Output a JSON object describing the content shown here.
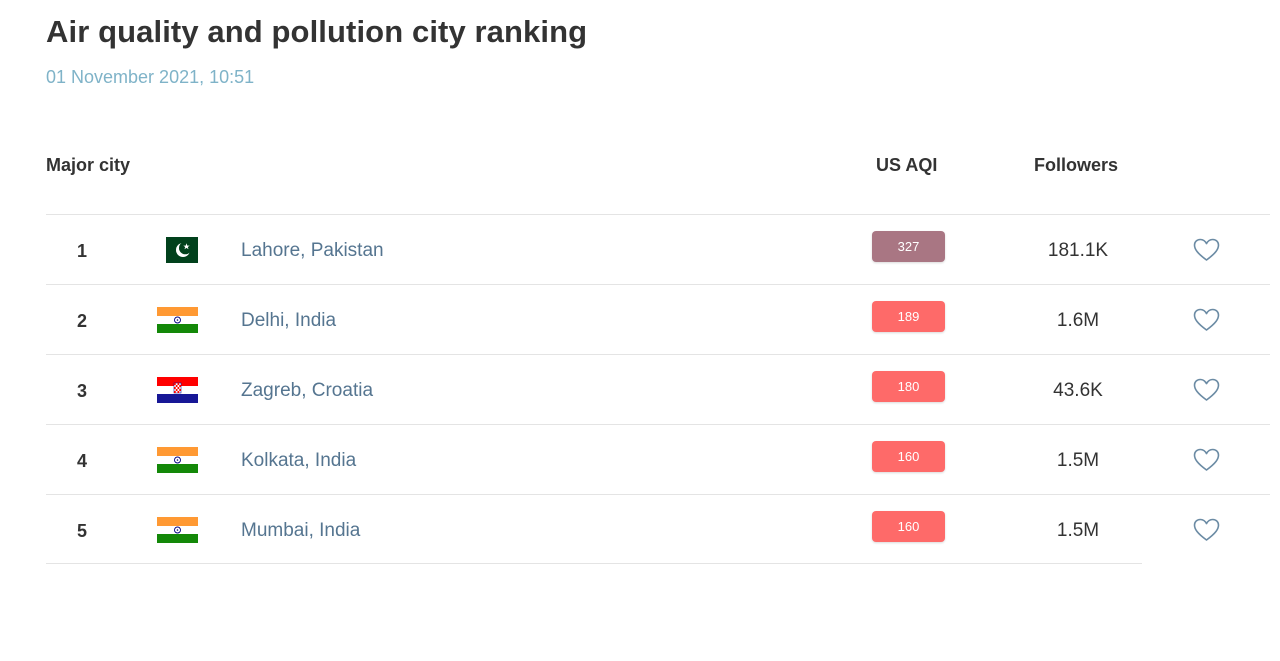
{
  "page": {
    "title": "Air quality and pollution city ranking",
    "timestamp": "01 November 2021, 10:51"
  },
  "table": {
    "headers": {
      "city": "Major city",
      "aqi": "US AQI",
      "followers": "Followers"
    },
    "rows": [
      {
        "rank": "1",
        "city": "Lahore, Pakistan",
        "flag_icon": "pakistan-flag-icon",
        "aqi": "327",
        "aqi_color": "#a97683",
        "followers": "181.1K"
      },
      {
        "rank": "2",
        "city": "Delhi, India",
        "flag_icon": "india-flag-icon",
        "aqi": "189",
        "aqi_color": "#fe6a69",
        "followers": "1.6M"
      },
      {
        "rank": "3",
        "city": "Zagreb, Croatia",
        "flag_icon": "croatia-flag-icon",
        "aqi": "180",
        "aqi_color": "#fe6a69",
        "followers": "43.6K"
      },
      {
        "rank": "4",
        "city": "Kolkata, India",
        "flag_icon": "india-flag-icon",
        "aqi": "160",
        "aqi_color": "#fe6a69",
        "followers": "1.5M"
      },
      {
        "rank": "5",
        "city": "Mumbai, India",
        "flag_icon": "india-flag-icon",
        "aqi": "160",
        "aqi_color": "#fe6a69",
        "followers": "1.5M"
      }
    ]
  },
  "colors": {
    "title_text": "#333333",
    "timestamp_text": "#7fb3c8",
    "city_link": "#557590",
    "heart_outline": "#6b8ba4"
  }
}
